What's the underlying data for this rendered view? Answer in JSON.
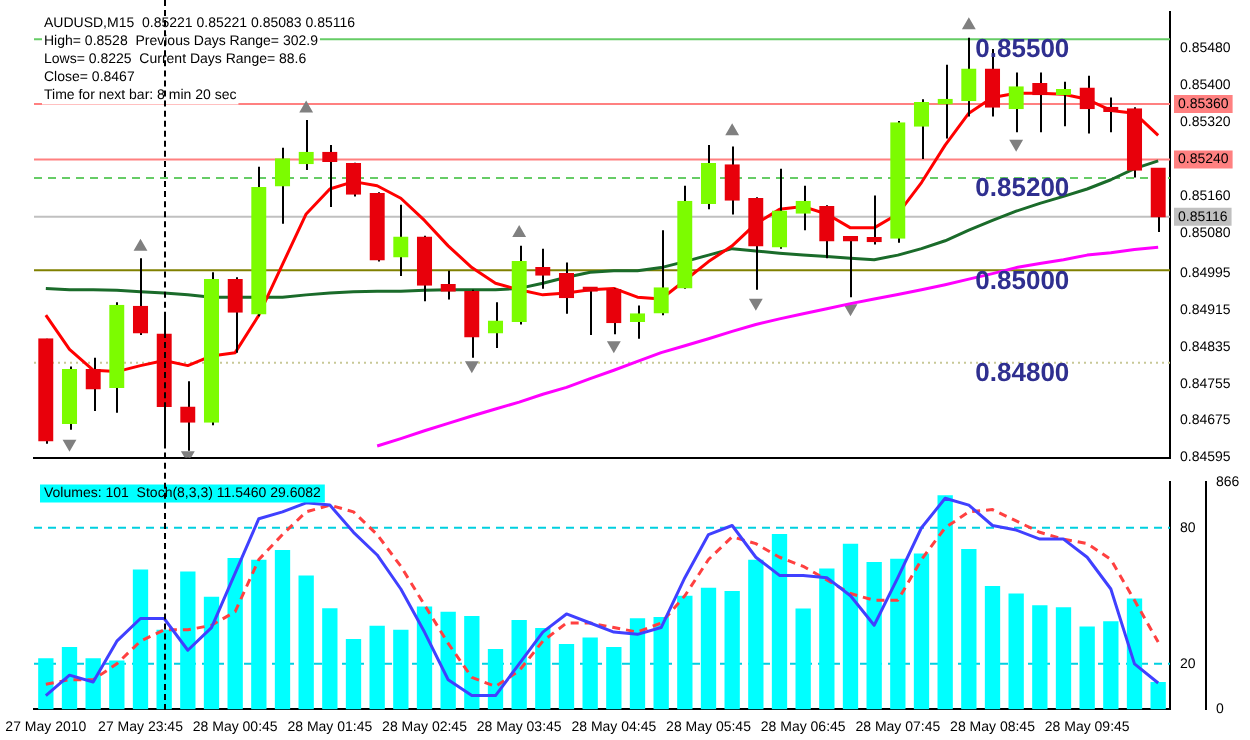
{
  "chart_data": [
    {
      "type": "candlestick",
      "title": "AUDUSD,M15  0.85221 0.85221 0.85083 0.85116",
      "annotations": [
        "High= 0.8528  Previous Days Range= 302.9",
        "Lows= 0.8225  Current Days Range= 88.6",
        "Close= 0.8467",
        "Time for next bar: 8 min 20 sec",
        {
          "text": "0.85500",
          "y": 0.855
        },
        {
          "text": "0.85200",
          "y": 0.852
        },
        {
          "text": "0.85000",
          "y": 0.85
        },
        {
          "text": "0.84800",
          "y": 0.848
        }
      ],
      "ohlc": [
        [
          0.84852,
          0.84852,
          0.84625,
          0.84631
        ],
        [
          0.84669,
          0.84792,
          0.84655,
          0.84785
        ],
        [
          0.84785,
          0.84811,
          0.84696,
          0.84744
        ],
        [
          0.84747,
          0.84931,
          0.84692,
          0.84924
        ],
        [
          0.84922,
          0.85026,
          0.8486,
          0.84865
        ],
        [
          0.84862,
          0.84903,
          0.84617,
          0.84706
        ],
        [
          0.84704,
          0.8476,
          0.8461,
          0.84672
        ],
        [
          0.84672,
          0.84996,
          0.84665,
          0.8498
        ],
        [
          0.8498,
          0.84985,
          0.84822,
          0.8491
        ],
        [
          0.84906,
          0.85224,
          0.84901,
          0.85179
        ],
        [
          0.85183,
          0.85265,
          0.85101,
          0.85241
        ],
        [
          0.85231,
          0.85325,
          0.85217,
          0.85255
        ],
        [
          0.85255,
          0.85271,
          0.85137,
          0.85236
        ],
        [
          0.85231,
          0.85233,
          0.8516,
          0.85165
        ],
        [
          0.85166,
          0.85169,
          0.85019,
          0.85023
        ],
        [
          0.85029,
          0.85142,
          0.84988,
          0.85072
        ],
        [
          0.85072,
          0.85075,
          0.84933,
          0.84968
        ],
        [
          0.84969,
          0.84999,
          0.84937,
          0.84955
        ],
        [
          0.84954,
          0.84958,
          0.84811,
          0.84856
        ],
        [
          0.84865,
          0.84931,
          0.84832,
          0.8489
        ],
        [
          0.8489,
          0.85053,
          0.84883,
          0.85019
        ],
        [
          0.85006,
          0.85047,
          0.8496,
          0.8499
        ],
        [
          0.84993,
          0.85017,
          0.84906,
          0.84941
        ],
        [
          0.84958,
          0.84962,
          0.8486,
          0.84955
        ],
        [
          0.84958,
          0.84961,
          0.84862,
          0.84887
        ],
        [
          0.8489,
          0.84924,
          0.84852,
          0.84906
        ],
        [
          0.84908,
          0.85087,
          0.84903,
          0.84962
        ],
        [
          0.84962,
          0.85183,
          0.8496,
          0.85149
        ],
        [
          0.85145,
          0.85271,
          0.85132,
          0.85231
        ],
        [
          0.85228,
          0.85268,
          0.85121,
          0.85152
        ],
        [
          0.85155,
          0.85158,
          0.84958,
          0.85053
        ],
        [
          0.85051,
          0.8522,
          0.85047,
          0.85128
        ],
        [
          0.85124,
          0.85183,
          0.85087,
          0.85149
        ],
        [
          0.85138,
          0.85141,
          0.85026,
          0.85064
        ],
        [
          0.85067,
          0.8507,
          0.84942,
          0.85064
        ],
        [
          0.85064,
          0.85162,
          0.85056,
          0.85062
        ],
        [
          0.8507,
          0.85323,
          0.8506,
          0.85319
        ],
        [
          0.85312,
          0.8537,
          0.85241,
          0.85363
        ],
        [
          0.8536,
          0.85445,
          0.85285,
          0.8537
        ],
        [
          0.85367,
          0.85503,
          0.85333,
          0.85435
        ],
        [
          0.85435,
          0.85479,
          0.85333,
          0.85353
        ],
        [
          0.8535,
          0.85428,
          0.85299,
          0.85397
        ],
        [
          0.85404,
          0.85428,
          0.85299,
          0.8538
        ],
        [
          0.8538,
          0.85408,
          0.85312,
          0.85391
        ],
        [
          0.85394,
          0.85421,
          0.85296,
          0.8535
        ],
        [
          0.85347,
          0.85374,
          0.85299,
          0.85344
        ],
        [
          0.85349,
          0.85353,
          0.85201,
          0.85217
        ],
        [
          0.85221,
          0.85221,
          0.85083,
          0.85116
        ]
      ],
      "series": [
        {
          "type": "line",
          "color": "#ff0000",
          "values": [
            0.84903,
            0.84829,
            0.84784,
            0.84781,
            0.84794,
            0.84805,
            0.84794,
            0.84815,
            0.84822,
            0.84903,
            0.85013,
            0.85122,
            0.85176,
            0.85192,
            0.85183,
            0.85156,
            0.85108,
            0.85053,
            0.85006,
            0.84972,
            0.84958,
            0.84947,
            0.84951,
            0.84958,
            0.84961,
            0.84942,
            0.84938,
            0.84978,
            0.85019,
            0.85053,
            0.85101,
            0.85132,
            0.85138,
            0.85122,
            0.85092,
            0.85092,
            0.85122,
            0.8519,
            0.85271,
            0.8534,
            0.85374,
            0.85383,
            0.85383,
            0.85381,
            0.8537,
            0.85346,
            0.8534,
            0.85292
          ]
        },
        {
          "type": "line",
          "color": "#1a6b2a",
          "values": [
            0.84961,
            0.84958,
            0.84958,
            0.84957,
            0.84954,
            0.84951,
            0.84947,
            0.84942,
            0.84942,
            0.84942,
            0.84942,
            0.84947,
            0.84951,
            0.84954,
            0.84955,
            0.84955,
            0.84957,
            0.84958,
            0.84958,
            0.84958,
            0.84961,
            0.84972,
            0.84985,
            0.84996,
            0.84999,
            0.84999,
            0.85006,
            0.85019,
            0.85033,
            0.85047,
            0.85042,
            0.85037,
            0.85033,
            0.8503,
            0.85026,
            0.85023,
            0.85033,
            0.85047,
            0.85064,
            0.85087,
            0.85108,
            0.85128,
            0.85145,
            0.8516,
            0.85176,
            0.85196,
            0.8522,
            0.85237
          ]
        },
        {
          "type": "line",
          "color": "#ff00ff",
          "values": [
            null,
            null,
            null,
            null,
            null,
            null,
            null,
            null,
            null,
            null,
            null,
            null,
            null,
            null,
            0.8462,
            0.84636,
            0.84653,
            0.84669,
            0.84685,
            0.847,
            0.84715,
            0.84732,
            0.84747,
            0.84766,
            0.84784,
            0.84803,
            0.84822,
            0.84837,
            0.84852,
            0.84868,
            0.84883,
            0.84895,
            0.84906,
            0.84917,
            0.84928,
            0.84938,
            0.84948,
            0.84958,
            0.84969,
            0.84981,
            0.84993,
            0.85006,
            0.85015,
            0.85023,
            0.85033,
            0.85038,
            0.85045,
            0.8505
          ]
        },
        {
          "type": "scatter",
          "marker": "triangle",
          "color": "#808080",
          "values": [
            null,
            null,
            null,
            null,
            0.85051,
            null,
            null,
            null,
            null,
            null,
            null,
            0.8535,
            null,
            null,
            null,
            null,
            null,
            null,
            null,
            null,
            0.85081,
            null,
            null,
            null,
            null,
            null,
            null,
            null,
            null,
            0.85301,
            null,
            null,
            null,
            null,
            null,
            null,
            null,
            null,
            null,
            0.8553,
            null,
            null,
            null,
            null,
            null,
            null,
            null,
            null
          ]
        },
        {
          "type": "scatter",
          "marker": "triangle",
          "color": "#808080",
          "values": [
            null,
            0.84625,
            null,
            null,
            null,
            null,
            0.846,
            null,
            null,
            null,
            null,
            null,
            null,
            null,
            null,
            null,
            null,
            null,
            0.84795,
            null,
            null,
            null,
            null,
            null,
            0.84838,
            null,
            null,
            null,
            null,
            null,
            0.8493,
            null,
            null,
            null,
            0.84918,
            null,
            null,
            null,
            null,
            null,
            null,
            0.85274,
            null,
            null,
            null,
            null,
            null,
            null
          ]
        }
      ],
      "ylim": [
        0.84595,
        0.85558
      ],
      "yticks": [
        {
          "value": 0.8548,
          "label": "0.85480"
        },
        {
          "value": 0.854,
          "label": "0.85400"
        },
        {
          "value": 0.8532,
          "label": "0.85320"
        },
        {
          "value": 0.8516,
          "label": "0.85160"
        },
        {
          "value": 0.8508,
          "label": "0.85080"
        },
        0.84995,
        0.84915,
        0.84835,
        0.84755,
        0.84675,
        0.84595
      ],
      "tick_labels": "y",
      "ref_lines": [
        {
          "axis": "y",
          "value": 0.855,
          "color": "#66cc66"
        },
        {
          "axis": "y",
          "value": 0.8536,
          "label": "0.85360",
          "color": "#ff8080"
        },
        {
          "axis": "y",
          "value": 0.8524,
          "label": "0.85240",
          "color": "#ff8080"
        },
        {
          "axis": "y",
          "value": 0.852,
          "color": "#66cc66",
          "line_style": "dashed"
        },
        {
          "axis": "y",
          "value": 0.85116,
          "label": "0.85116",
          "color": "#c0c0c0"
        },
        {
          "axis": "y",
          "value": 0.85,
          "color": "#808000"
        },
        {
          "axis": "y",
          "value": 0.848,
          "color": "#c8c896",
          "line_style": "dotted"
        }
      ]
    },
    {
      "type": "bar",
      "title": "Volumes: 101  Stoch(8,3,3) 11.5460 29.6082",
      "categories": [
        "27 May 2010",
        null,
        null,
        null,
        "27 May 23:45",
        null,
        null,
        null,
        "28 May 00:45",
        null,
        null,
        null,
        "28 May 01:45",
        null,
        null,
        null,
        "28 May 02:45",
        null,
        null,
        null,
        "28 May 03:45",
        null,
        null,
        null,
        "28 May 04:45",
        null,
        null,
        null,
        "28 May 05:45",
        null,
        null,
        null,
        "28 May 06:45",
        null,
        null,
        null,
        "28 May 07:45",
        null,
        null,
        null,
        "28 May 08:45",
        null,
        null,
        null,
        "28 May 09:45",
        null,
        null,
        null
      ],
      "series": [
        {
          "axis": "y2",
          "color": "#00ffff",
          "values": [
            192,
            235,
            192,
            183,
            531,
            301,
            523,
            427,
            575,
            568,
            605,
            508,
            383,
            266,
            316,
            301,
            390,
            370,
            353,
            227,
            338,
            308,
            246,
            271,
            235,
            345,
            350,
            431,
            461,
            449,
            568,
            666,
            382,
            535,
            629,
            560,
            572,
            592,
            814,
            609,
            468,
            439,
            394,
            387,
            313,
            333,
            420,
            101
          ]
        },
        {
          "type": "line",
          "color": "#4040ff",
          "values": [
            6,
            15,
            12,
            30,
            40,
            40,
            26,
            36,
            60,
            84,
            87,
            91,
            90,
            78,
            68,
            53,
            34,
            13,
            6,
            6,
            20,
            34,
            42,
            38,
            34,
            33,
            36,
            58,
            77,
            81,
            67,
            59,
            59,
            58,
            50,
            37,
            58,
            80,
            93,
            90,
            81,
            79,
            75,
            75,
            67,
            53,
            20,
            11.546
          ]
        },
        {
          "type": "line",
          "color": "#ff4040",
          "line_style": "dashed",
          "values": [
            11,
            13,
            13,
            20,
            30,
            35,
            35,
            37,
            43,
            66,
            77,
            87,
            90,
            87,
            77,
            63,
            46,
            29,
            14,
            10,
            17,
            30,
            38,
            38,
            36,
            34,
            38,
            50,
            66,
            76,
            73,
            67,
            63,
            57,
            51,
            48,
            48,
            66,
            80,
            87,
            88,
            83,
            78,
            75,
            73,
            66,
            48,
            29.6082
          ]
        }
      ],
      "ylim": [
        0,
        100
      ],
      "yticks": [
        20,
        80
      ],
      "y2lim": [
        0,
        866
      ],
      "y2ticks": [
        0,
        866
      ],
      "ref_lines": [
        {
          "axis": "y",
          "value": 20,
          "color": "#00d0e0",
          "line_style": "dashed"
        },
        {
          "axis": "y",
          "value": 80,
          "color": "#00d0e0",
          "line_style": "dashed"
        }
      ]
    }
  ]
}
